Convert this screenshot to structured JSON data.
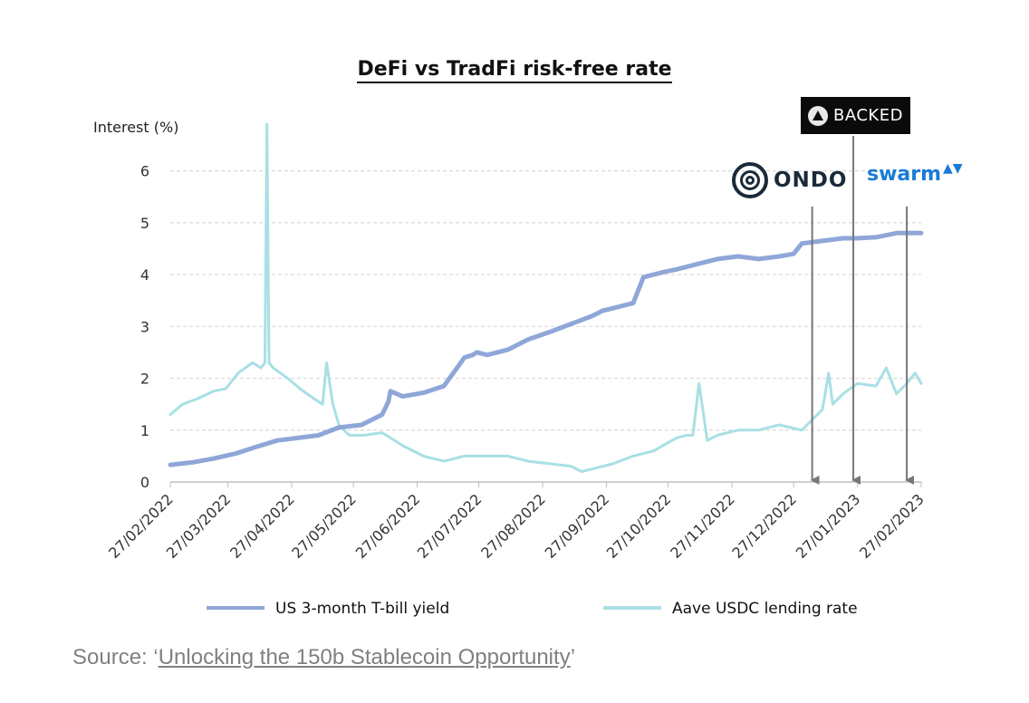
{
  "chart_data": {
    "type": "line",
    "title": "DeFi vs TradFi risk-free rate",
    "xlabel": "",
    "ylabel": "Interest (%)",
    "ylim": [
      0,
      6.5
    ],
    "yticks": [
      0,
      1,
      2,
      3,
      4,
      5,
      6
    ],
    "xlim": [
      "2022-02-27",
      "2023-02-27"
    ],
    "xticks": [
      "27/02/2022",
      "27/03/2022",
      "27/04/2022",
      "27/05/2022",
      "27/06/2022",
      "27/07/2022",
      "27/08/2022",
      "27/09/2022",
      "27/10/2022",
      "27/11/2022",
      "27/12/2022",
      "27/01/2023",
      "27/02/2023"
    ],
    "grid": true,
    "legend": "bottom",
    "series": [
      {
        "name": "US 3-month T-bill yield",
        "color": "#8fa6d8",
        "x": [
          "2022-02-27",
          "2022-03-10",
          "2022-03-20",
          "2022-03-31",
          "2022-04-10",
          "2022-04-20",
          "2022-04-30",
          "2022-05-10",
          "2022-05-20",
          "2022-05-31",
          "2022-06-10",
          "2022-06-13",
          "2022-06-14",
          "2022-06-20",
          "2022-06-30",
          "2022-07-10",
          "2022-07-20",
          "2022-07-24",
          "2022-07-26",
          "2022-07-31",
          "2022-08-10",
          "2022-08-20",
          "2022-08-31",
          "2022-09-10",
          "2022-09-20",
          "2022-09-25",
          "2022-09-30",
          "2022-10-10",
          "2022-10-15",
          "2022-10-20",
          "2022-10-25",
          "2022-10-31",
          "2022-11-10",
          "2022-11-20",
          "2022-11-30",
          "2022-12-10",
          "2022-12-20",
          "2022-12-27",
          "2022-12-31",
          "2023-01-10",
          "2023-01-20",
          "2023-01-27",
          "2023-02-05",
          "2023-02-15",
          "2023-02-27"
        ],
        "values": [
          0.33,
          0.38,
          0.45,
          0.55,
          0.68,
          0.8,
          0.85,
          0.9,
          1.05,
          1.1,
          1.3,
          1.55,
          1.75,
          1.65,
          1.72,
          1.85,
          2.4,
          2.45,
          2.5,
          2.45,
          2.55,
          2.75,
          2.9,
          3.05,
          3.2,
          3.3,
          3.35,
          3.45,
          3.95,
          4.0,
          4.05,
          4.1,
          4.2,
          4.3,
          4.35,
          4.3,
          4.35,
          4.4,
          4.6,
          4.65,
          4.7,
          4.7,
          4.72,
          4.8,
          4.8
        ]
      },
      {
        "name": "Aave USDC lending rate",
        "color": "#a8e0e4",
        "x": [
          "2022-02-27",
          "2022-03-05",
          "2022-03-12",
          "2022-03-20",
          "2022-03-26",
          "2022-04-01",
          "2022-04-08",
          "2022-04-12",
          "2022-04-14",
          "2022-04-15",
          "2022-04-16",
          "2022-04-18",
          "2022-04-25",
          "2022-05-01",
          "2022-05-08",
          "2022-05-12",
          "2022-05-14",
          "2022-05-17",
          "2022-05-20",
          "2022-05-25",
          "2022-06-01",
          "2022-06-10",
          "2022-06-20",
          "2022-06-30",
          "2022-07-10",
          "2022-07-20",
          "2022-07-31",
          "2022-08-10",
          "2022-08-20",
          "2022-08-31",
          "2022-09-10",
          "2022-09-15",
          "2022-09-20",
          "2022-09-30",
          "2022-10-10",
          "2022-10-20",
          "2022-10-31",
          "2022-11-05",
          "2022-11-08",
          "2022-11-11",
          "2022-11-15",
          "2022-11-20",
          "2022-11-30",
          "2022-12-10",
          "2022-12-20",
          "2022-12-31",
          "2023-01-05",
          "2023-01-10",
          "2023-01-13",
          "2023-01-15",
          "2023-01-20",
          "2023-01-27",
          "2023-02-05",
          "2023-02-10",
          "2023-02-15",
          "2023-02-20",
          "2023-02-24",
          "2023-02-27"
        ],
        "values": [
          1.3,
          1.5,
          1.6,
          1.75,
          1.8,
          2.1,
          2.3,
          2.2,
          2.3,
          6.9,
          2.3,
          2.2,
          2.0,
          1.8,
          1.6,
          1.5,
          2.3,
          1.5,
          1.1,
          0.9,
          0.9,
          0.95,
          0.7,
          0.5,
          0.4,
          0.5,
          0.5,
          0.5,
          0.4,
          0.35,
          0.3,
          0.2,
          0.25,
          0.35,
          0.5,
          0.6,
          0.85,
          0.9,
          0.9,
          1.9,
          0.8,
          0.9,
          1.0,
          1.0,
          1.1,
          1.0,
          1.2,
          1.4,
          2.1,
          1.5,
          1.7,
          1.9,
          1.85,
          2.2,
          1.7,
          1.9,
          2.1,
          1.9
        ]
      }
    ],
    "annotations": [
      {
        "label": "ONDO",
        "x": "2023-01-05"
      },
      {
        "label": "BACKED",
        "x": "2023-01-25"
      },
      {
        "label": "swarm",
        "x": "2023-02-20"
      }
    ]
  },
  "logos": {
    "backed_text": "BACKED",
    "ondo_text": "ONDO",
    "swarm_text": "swarm",
    "swarm_mark": "ᴠᴬ"
  },
  "source": {
    "prefix": "Source: ‘",
    "link_text": "Unlocking the 150b Stablecoin Opportunity",
    "suffix": "’"
  }
}
